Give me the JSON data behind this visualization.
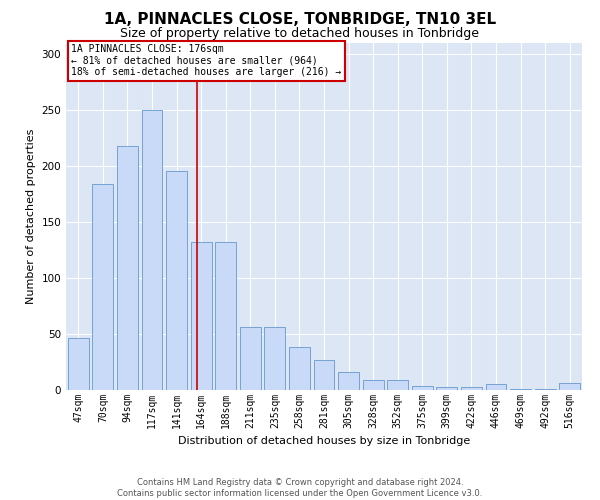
{
  "title": "1A, PINNACLES CLOSE, TONBRIDGE, TN10 3EL",
  "subtitle": "Size of property relative to detached houses in Tonbridge",
  "xlabel": "Distribution of detached houses by size in Tonbridge",
  "ylabel": "Number of detached properties",
  "categories": [
    "47sqm",
    "70sqm",
    "94sqm",
    "117sqm",
    "141sqm",
    "164sqm",
    "188sqm",
    "211sqm",
    "235sqm",
    "258sqm",
    "281sqm",
    "305sqm",
    "328sqm",
    "352sqm",
    "375sqm",
    "399sqm",
    "422sqm",
    "446sqm",
    "469sqm",
    "492sqm",
    "516sqm"
  ],
  "values": [
    46,
    184,
    218,
    250,
    195,
    132,
    132,
    56,
    56,
    38,
    27,
    16,
    9,
    9,
    4,
    3,
    3,
    5,
    1,
    1,
    6
  ],
  "bar_color": "#c9daf8",
  "bar_edge_color": "#6699cc",
  "background_color": "#dce6f5",
  "vline_color": "#cc0000",
  "vline_x_index": 5,
  "annotation_text": "1A PINNACLES CLOSE: 176sqm\n← 81% of detached houses are smaller (964)\n18% of semi-detached houses are larger (216) →",
  "annotation_box_facecolor": "#ffffff",
  "annotation_box_edgecolor": "#cc0000",
  "footer_line1": "Contains HM Land Registry data © Crown copyright and database right 2024.",
  "footer_line2": "Contains public sector information licensed under the Open Government Licence v3.0.",
  "ylim": [
    0,
    310
  ],
  "yticks": [
    0,
    50,
    100,
    150,
    200,
    250,
    300
  ],
  "title_fontsize": 11,
  "subtitle_fontsize": 9,
  "tick_fontsize": 7,
  "ylabel_fontsize": 8,
  "xlabel_fontsize": 8,
  "annotation_fontsize": 7,
  "footer_fontsize": 6
}
